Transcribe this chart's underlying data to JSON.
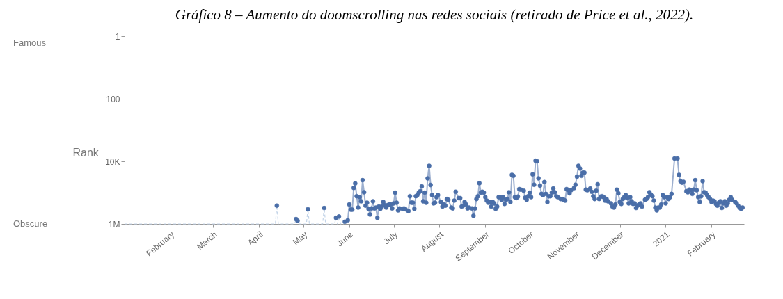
{
  "chart_data": {
    "type": "line",
    "title": "Gráfico 8 – Aumento do doomscrolling nas redes sociais (retirado de Price et al., 2022).",
    "ylabel": "Rank",
    "annotations": [
      "Famous",
      "Obscure"
    ],
    "log": true,
    "ylim": [
      1000000,
      1
    ],
    "yticks": [
      1,
      100,
      {
        "value": 10000,
        "label": "10K"
      },
      {
        "value": 1000000,
        "label": "1M"
      }
    ],
    "xlim": [
      "2020-01-01",
      "2021-02-23"
    ],
    "xticks": [
      {
        "value": "2020-02-01",
        "label": "February"
      },
      {
        "value": "2020-03-01",
        "label": "March"
      },
      {
        "value": "2020-04-01",
        "label": "April"
      },
      {
        "value": "2020-05-01",
        "label": "May"
      },
      {
        "value": "2020-06-01",
        "label": "June"
      },
      {
        "value": "2020-07-01",
        "label": "July"
      },
      {
        "value": "2020-08-01",
        "label": "August"
      },
      {
        "value": "2020-09-01",
        "label": "September"
      },
      {
        "value": "2020-10-01",
        "label": "October"
      },
      {
        "value": "2020-11-01",
        "label": "November"
      },
      {
        "value": "2020-12-01",
        "label": "December"
      },
      {
        "value": "2021-01-01",
        "label": "2021"
      },
      {
        "value": "2021-02-01",
        "label": "February"
      }
    ],
    "marker": "circle",
    "line_style": "solid",
    "grid": false,
    "series": [
      {
        "color": "#c3d4e8",
        "line_style": "dashed",
        "marker": "none",
        "x": [
          "2020-01-01",
          "2020-04-12",
          "2020-04-13",
          "2020-04-14",
          "2020-04-25",
          "2020-04-26",
          "2020-04-27",
          "2020-04-28",
          "2020-05-03",
          "2020-05-04",
          "2020-05-05",
          "2020-05-14",
          "2020-05-15",
          "2020-05-16",
          "2020-05-22",
          "2020-05-23",
          "2020-05-24",
          "2020-05-25",
          "2020-05-26",
          "2020-05-28",
          "2020-05-29"
        ],
        "values": [
          1000000,
          1000000,
          260000,
          1000000,
          1000000,
          700000,
          790000,
          1000000,
          1000000,
          340000,
          1000000,
          1000000,
          310000,
          1000000,
          1000000,
          640000,
          1000000,
          580000,
          1000000,
          1000000,
          850000
        ]
      },
      {
        "type": "scatter",
        "color": "#4a6ea8",
        "x": [
          "2020-04-13",
          "2020-04-26",
          "2020-04-27",
          "2020-05-04",
          "2020-05-15",
          "2020-05-23",
          "2020-05-25"
        ],
        "values": [
          260000,
          700000,
          790000,
          340000,
          310000,
          640000,
          580000
        ]
      },
      {
        "color": "#4a6ea8",
        "x": [
          "2020-05-29",
          "2020-05-31",
          "2020-06-01",
          "2020-06-02",
          "2020-06-03",
          "2020-06-04",
          "2020-06-05",
          "2020-06-06",
          "2020-06-07",
          "2020-06-08",
          "2020-06-09",
          "2020-06-10",
          "2020-06-11",
          "2020-06-12",
          "2020-06-13",
          "2020-06-14",
          "2020-06-15",
          "2020-06-16",
          "2020-06-17",
          "2020-06-18",
          "2020-06-19",
          "2020-06-20",
          "2020-06-21",
          "2020-06-22",
          "2020-06-23",
          "2020-06-24",
          "2020-06-25",
          "2020-06-26",
          "2020-06-27",
          "2020-06-28",
          "2020-06-29",
          "2020-06-30",
          "2020-07-01",
          "2020-07-02",
          "2020-07-03",
          "2020-07-04",
          "2020-07-05",
          "2020-07-07",
          "2020-07-08",
          "2020-07-09",
          "2020-07-11",
          "2020-07-12",
          "2020-07-13",
          "2020-07-14",
          "2020-07-15",
          "2020-07-16",
          "2020-07-17",
          "2020-07-18",
          "2020-07-19",
          "2020-07-20",
          "2020-07-21",
          "2020-07-22",
          "2020-07-23",
          "2020-07-24",
          "2020-07-25",
          "2020-07-26",
          "2020-07-27",
          "2020-07-28",
          "2020-07-29",
          "2020-07-30",
          "2020-07-31",
          "2020-08-02",
          "2020-08-03",
          "2020-08-04",
          "2020-08-05",
          "2020-08-06",
          "2020-08-07",
          "2020-08-09",
          "2020-08-10",
          "2020-08-11",
          "2020-08-12",
          "2020-08-14",
          "2020-08-15",
          "2020-08-16",
          "2020-08-17",
          "2020-08-18",
          "2020-08-19",
          "2020-08-20",
          "2020-08-21",
          "2020-08-23",
          "2020-08-24",
          "2020-08-25",
          "2020-08-26",
          "2020-08-27",
          "2020-08-28",
          "2020-08-29",
          "2020-08-30",
          "2020-08-31",
          "2020-09-01",
          "2020-09-02",
          "2020-09-03",
          "2020-09-04",
          "2020-09-05",
          "2020-09-06",
          "2020-09-07",
          "2020-09-08",
          "2020-09-09",
          "2020-09-10",
          "2020-09-11",
          "2020-09-12",
          "2020-09-13",
          "2020-09-14",
          "2020-09-15",
          "2020-09-16",
          "2020-09-17",
          "2020-09-18",
          "2020-09-19",
          "2020-09-20",
          "2020-09-21",
          "2020-09-22",
          "2020-09-23",
          "2020-09-24",
          "2020-09-25",
          "2020-09-27",
          "2020-09-28",
          "2020-09-29",
          "2020-09-30",
          "2020-10-01",
          "2020-10-02",
          "2020-10-03",
          "2020-10-04",
          "2020-10-05",
          "2020-10-06",
          "2020-10-07",
          "2020-10-08",
          "2020-10-09",
          "2020-10-10",
          "2020-10-11",
          "2020-10-12",
          "2020-10-13",
          "2020-10-14",
          "2020-10-15",
          "2020-10-16",
          "2020-10-17",
          "2020-10-18",
          "2020-10-19",
          "2020-10-20",
          "2020-10-22",
          "2020-10-23",
          "2020-10-24",
          "2020-10-25",
          "2020-10-26",
          "2020-10-27",
          "2020-10-28",
          "2020-10-29",
          "2020-10-31",
          "2020-11-01",
          "2020-11-02",
          "2020-11-03",
          "2020-11-04",
          "2020-11-05",
          "2020-11-06",
          "2020-11-07",
          "2020-11-08",
          "2020-11-09",
          "2020-11-11",
          "2020-11-12",
          "2020-11-13",
          "2020-11-14",
          "2020-11-15",
          "2020-11-16",
          "2020-11-17",
          "2020-11-18",
          "2020-11-19",
          "2020-11-20",
          "2020-11-21",
          "2020-11-22",
          "2020-11-23",
          "2020-11-25",
          "2020-11-26",
          "2020-11-27",
          "2020-11-28",
          "2020-11-29",
          "2020-11-30",
          "2020-12-01",
          "2020-12-02",
          "2020-12-03",
          "2020-12-04",
          "2020-12-05",
          "2020-12-06",
          "2020-12-07",
          "2020-12-08",
          "2020-12-09",
          "2020-12-10",
          "2020-12-11",
          "2020-12-12",
          "2020-12-13",
          "2020-12-14",
          "2020-12-15",
          "2020-12-16",
          "2020-12-18",
          "2020-12-19",
          "2020-12-20",
          "2020-12-21",
          "2020-12-22",
          "2020-12-23",
          "2020-12-24",
          "2020-12-25",
          "2020-12-26",
          "2020-12-27",
          "2020-12-28",
          "2020-12-29",
          "2020-12-30",
          "2020-12-31",
          "2021-01-01",
          "2021-01-02",
          "2021-01-03",
          "2021-01-04",
          "2021-01-05",
          "2021-01-07",
          "2021-01-09",
          "2021-01-10",
          "2021-01-11",
          "2021-01-12",
          "2021-01-13",
          "2021-01-15",
          "2021-01-16",
          "2021-01-17",
          "2021-01-18",
          "2021-01-19",
          "2021-01-20",
          "2021-01-21",
          "2021-01-22",
          "2021-01-23",
          "2021-01-24",
          "2021-01-25",
          "2021-01-26",
          "2021-01-27",
          "2021-01-28",
          "2021-01-29",
          "2021-01-30",
          "2021-01-31",
          "2021-02-01",
          "2021-02-02",
          "2021-02-03",
          "2021-02-04",
          "2021-02-05",
          "2021-02-06",
          "2021-02-07",
          "2021-02-08",
          "2021-02-09",
          "2021-02-10",
          "2021-02-11",
          "2021-02-12",
          "2021-02-13",
          "2021-02-14",
          "2021-02-15",
          "2021-02-17",
          "2021-02-18",
          "2021-02-19",
          "2021-02-20",
          "2021-02-21",
          "2021-02-22"
        ],
        "values": [
          850000,
          760000,
          240000,
          350000,
          350000,
          71000,
          51000,
          130000,
          300000,
          140000,
          190000,
          40000,
          97000,
          260000,
          210000,
          330000,
          500000,
          320000,
          190000,
          320000,
          300000,
          640000,
          280000,
          330000,
          280000,
          200000,
          250000,
          300000,
          250000,
          240000,
          240000,
          320000,
          220000,
          100000,
          210000,
          370000,
          320000,
          330000,
          320000,
          340000,
          390000,
          130000,
          210000,
          210000,
          330000,
          130000,
          120000,
          100000,
          90000,
          63000,
          190000,
          100000,
          210000,
          35000,
          14000,
          57000,
          120000,
          220000,
          210000,
          140000,
          120000,
          200000,
          280000,
          240000,
          260000,
          160000,
          170000,
          300000,
          320000,
          180000,
          94000,
          150000,
          150000,
          280000,
          260000,
          200000,
          240000,
          320000,
          300000,
          320000,
          550000,
          320000,
          160000,
          130000,
          50000,
          100000,
          94000,
          100000,
          140000,
          180000,
          210000,
          200000,
          280000,
          200000,
          220000,
          330000,
          280000,
          140000,
          140000,
          170000,
          140000,
          230000,
          170000,
          160000,
          98000,
          200000,
          27000,
          29000,
          140000,
          150000,
          135000,
          77000,
          80000,
          87000,
          144000,
          170000,
          130000,
          100000,
          140000,
          26000,
          56000,
          9600,
          10000,
          35000,
          60000,
          110000,
          120000,
          46000,
          110000,
          200000,
          130000,
          130000,
          100000,
          74000,
          98000,
          130000,
          140000,
          160000,
          160000,
          170000,
          180000,
          77000,
          84000,
          105000,
          84000,
          72000,
          56000,
          31000,
          14000,
          17000,
          29000,
          23000,
          23000,
          80000,
          84000,
          74000,
          94000,
          130000,
          160000,
          87000,
          54000,
          160000,
          135000,
          130000,
          140000,
          180000,
          160000,
          190000,
          220000,
          280000,
          300000,
          240000,
          80000,
          105000,
          200000,
          230000,
          160000,
          140000,
          120000,
          150000,
          220000,
          140000,
          190000,
          230000,
          220000,
          310000,
          260000,
          240000,
          220000,
          280000,
          170000,
          160000,
          140000,
          97000,
          115000,
          130000,
          180000,
          300000,
          370000,
          300000,
          300000,
          240000,
          120000,
          140000,
          220000,
          140000,
          160000,
          140000,
          110000,
          8100,
          8100,
          27000,
          43000,
          48000,
          45000,
          90000,
          98000,
          80000,
          84000,
          110000,
          80000,
          40000,
          84000,
          140000,
          200000,
          130000,
          43000,
          97000,
          100000,
          120000,
          140000,
          160000,
          200000,
          180000,
          190000,
          230000,
          260000,
          210000,
          190000,
          310000,
          220000,
          190000,
          260000,
          220000,
          170000,
          140000,
          170000,
          200000,
          220000,
          260000,
          300000,
          330000,
          300000
        ]
      }
    ]
  }
}
